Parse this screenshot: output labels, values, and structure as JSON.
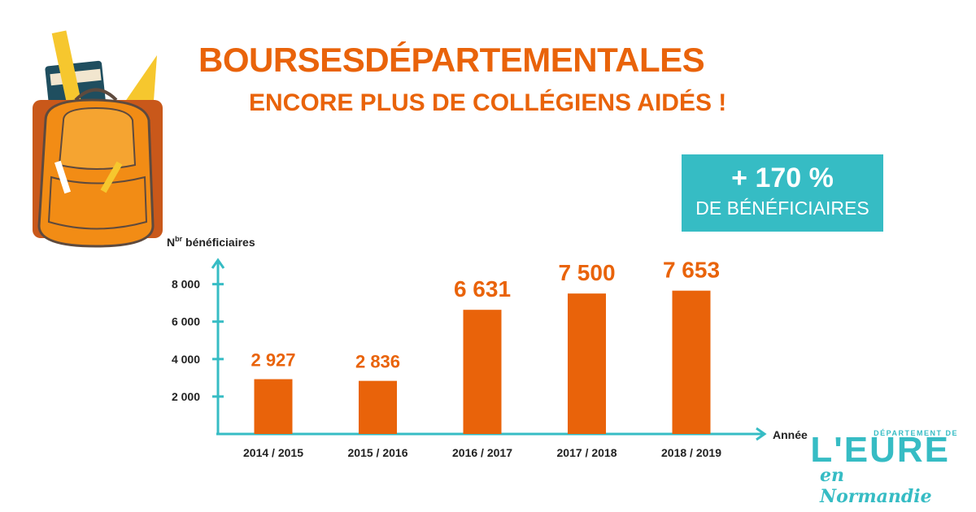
{
  "header": {
    "title": "BOURSESDÉPARTEMENTALES",
    "subtitle": "ENCORE PLUS DE COLLÉGIENS AIDÉS !"
  },
  "badge": {
    "value": "+ 170 %",
    "label": "DE BÉNÉFICIAIRES",
    "color": "#36bcc4"
  },
  "colors": {
    "accent": "#e9630a",
    "axis": "#36bcc4"
  },
  "chart_data": {
    "type": "bar",
    "categories": [
      "2014 / 2015",
      "2015 / 2016",
      "2016 / 2017",
      "2017 / 2018",
      "2018 / 2019"
    ],
    "values": [
      2927,
      2836,
      6631,
      7500,
      7653
    ],
    "value_labels": [
      "2 927",
      "2 836",
      "6 631",
      "7 500",
      "7 653"
    ],
    "yticks": [
      2000,
      4000,
      6000,
      8000
    ],
    "ytick_labels": [
      "2 000",
      "4 000",
      "6 000",
      "8 000"
    ],
    "ylabel_main": "N",
    "ylabel_sup": "br",
    "ylabel_rest": " bénéficiaires",
    "xlabel": "Année",
    "ylim": [
      0,
      9200
    ],
    "grid": false,
    "legend": "none"
  },
  "logo": {
    "top": "DÉPARTEMENT DE",
    "main": "L'EURE",
    "sub": "en Normandie"
  }
}
